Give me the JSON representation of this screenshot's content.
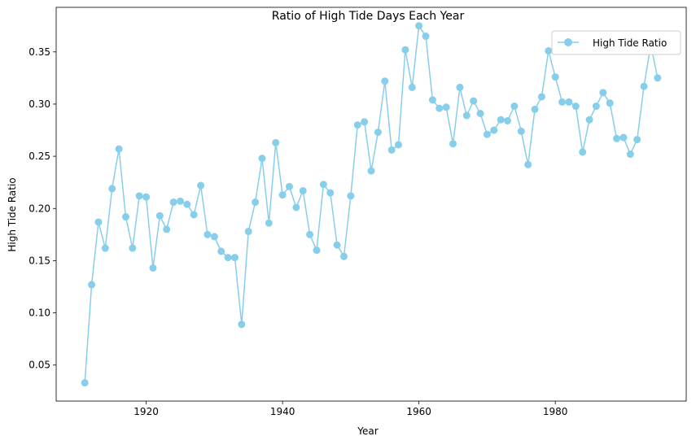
{
  "chart_data": {
    "type": "line",
    "title": "Ratio of High Tide Days Each Year",
    "xlabel": "Year",
    "ylabel": "High Tide Ratio",
    "xlim": [
      1906.8,
      1999.2
    ],
    "ylim": [
      0.0155,
      0.3927
    ],
    "x_ticks": [
      1920,
      1940,
      1960,
      1980
    ],
    "y_ticks": [
      0.05,
      0.1,
      0.15,
      0.2,
      0.25,
      0.3,
      0.35
    ],
    "x_tick_labels": [
      "1920",
      "1940",
      "1960",
      "1980"
    ],
    "y_tick_labels": [
      "0.05",
      "0.10",
      "0.15",
      "0.20",
      "0.25",
      "0.30",
      "0.35"
    ],
    "grid": false,
    "legend_position": "top-right",
    "color": "#87CEEB",
    "series": [
      {
        "name": "High Tide Ratio",
        "x": [
          1911,
          1912,
          1913,
          1914,
          1915,
          1916,
          1917,
          1918,
          1919,
          1920,
          1921,
          1922,
          1923,
          1924,
          1925,
          1926,
          1927,
          1928,
          1929,
          1930,
          1931,
          1932,
          1933,
          1934,
          1935,
          1936,
          1937,
          1938,
          1939,
          1940,
          1941,
          1942,
          1943,
          1944,
          1945,
          1946,
          1947,
          1948,
          1949,
          1950,
          1951,
          1952,
          1953,
          1954,
          1955,
          1956,
          1957,
          1958,
          1959,
          1960,
          1961,
          1962,
          1963,
          1964,
          1965,
          1966,
          1967,
          1968,
          1969,
          1970,
          1971,
          1972,
          1973,
          1974,
          1975,
          1976,
          1977,
          1978,
          1979,
          1980,
          1981,
          1982,
          1983,
          1984,
          1985,
          1986,
          1987,
          1988,
          1989,
          1990,
          1991,
          1992,
          1993,
          1994,
          1995
        ],
        "values": [
          0.033,
          0.127,
          0.187,
          0.162,
          0.219,
          0.257,
          0.192,
          0.162,
          0.212,
          0.211,
          0.143,
          0.193,
          0.18,
          0.206,
          0.207,
          0.204,
          0.194,
          0.222,
          0.175,
          0.173,
          0.159,
          0.153,
          0.153,
          0.089,
          0.178,
          0.206,
          0.248,
          0.186,
          0.263,
          0.213,
          0.221,
          0.201,
          0.217,
          0.175,
          0.16,
          0.223,
          0.215,
          0.165,
          0.154,
          0.212,
          0.28,
          0.283,
          0.236,
          0.273,
          0.322,
          0.256,
          0.261,
          0.352,
          0.316,
          0.375,
          0.365,
          0.304,
          0.296,
          0.297,
          0.262,
          0.316,
          0.289,
          0.303,
          0.291,
          0.271,
          0.275,
          0.285,
          0.284,
          0.298,
          0.274,
          0.242,
          0.295,
          0.307,
          0.351,
          0.326,
          0.302,
          0.302,
          0.298,
          0.254,
          0.285,
          0.298,
          0.311,
          0.301,
          0.267,
          0.268,
          0.252,
          0.266,
          0.317,
          0.357,
          0.325
        ]
      }
    ]
  }
}
